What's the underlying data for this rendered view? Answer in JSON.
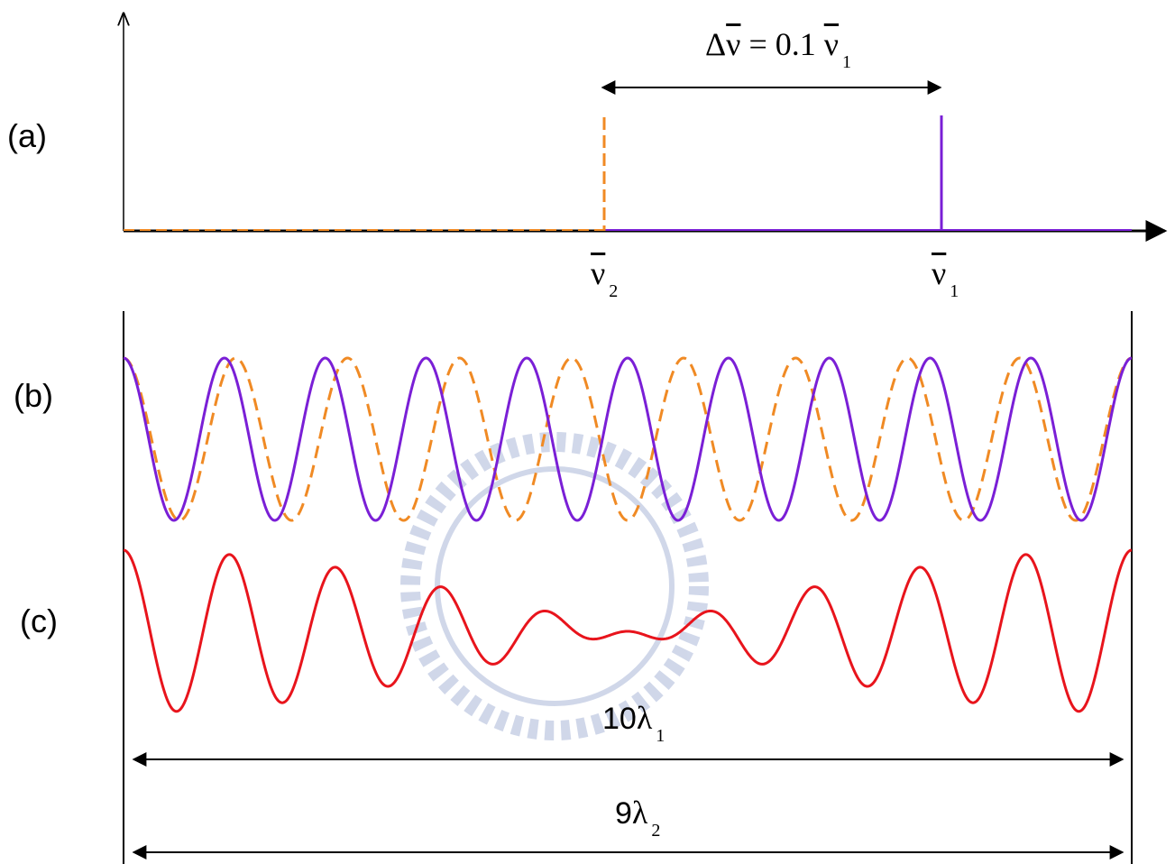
{
  "panel_labels": [
    "(a)",
    "(b)",
    "(c)"
  ],
  "spectrum": {
    "separation": {
      "prefix": "Δ",
      "symbol": "ν",
      "equals": "= 0.1",
      "ref_symbol": "ν",
      "ref_subscript": "1"
    },
    "peaks": [
      {
        "symbol": "ν",
        "subscript": "2"
      },
      {
        "symbol": "ν",
        "subscript": "1"
      }
    ]
  },
  "lengths": [
    {
      "count": "10",
      "symbol": "λ",
      "subscript": "1"
    },
    {
      "count": "9",
      "symbol": "λ",
      "subscript": "2"
    }
  ]
}
